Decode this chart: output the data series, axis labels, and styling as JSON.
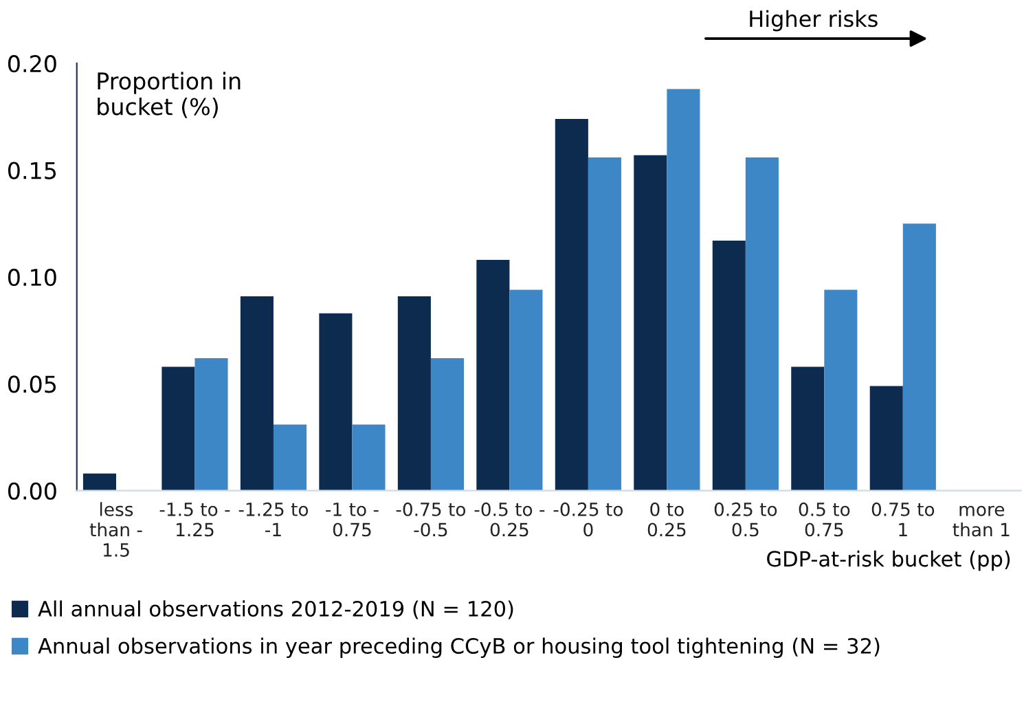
{
  "chart_data": {
    "type": "bar",
    "xlabel": "GDP-at-risk bucket (pp)",
    "ylabel": "Proportion in\nbucket (%)",
    "categories": [
      "less\nthan -\n1.5",
      "-1.5 to -\n1.25",
      "-1.25 to\n-1",
      "-1 to -\n0.75",
      "-0.75 to\n-0.5",
      "-0.5 to -\n0.25",
      "-0.25 to\n0",
      "0 to\n0.25",
      "0.25 to\n0.5",
      "0.5 to\n0.75",
      "0.75 to\n1",
      "more\nthan 1"
    ],
    "series": [
      {
        "name": "All annual observations 2012-2019 (N = 120)",
        "color": "#0d2a4f",
        "values": [
          0.008,
          0.058,
          0.091,
          0.083,
          0.091,
          0.108,
          0.174,
          0.157,
          0.117,
          0.058,
          0.049,
          0
        ]
      },
      {
        "name": "Annual observations in year preceding CCyB or housing tool tightening (N = 32)",
        "color": "#3d87c6",
        "values": [
          0,
          0.062,
          0.031,
          0.031,
          0.062,
          0.094,
          0.156,
          0.188,
          0.156,
          0.094,
          0.125,
          0
        ]
      }
    ],
    "ylim": [
      0,
      0.2
    ],
    "yticks": [
      {
        "value": 0,
        "label": "0.00"
      },
      {
        "value": 0.05,
        "label": "0.05"
      },
      {
        "value": 0.1,
        "label": "0.10"
      },
      {
        "value": 0.15,
        "label": "0.15"
      },
      {
        "value": 0.2,
        "label": "0.20"
      }
    ],
    "annotations": [
      "Higher risks"
    ],
    "legend": "bottom",
    "grid": false
  }
}
